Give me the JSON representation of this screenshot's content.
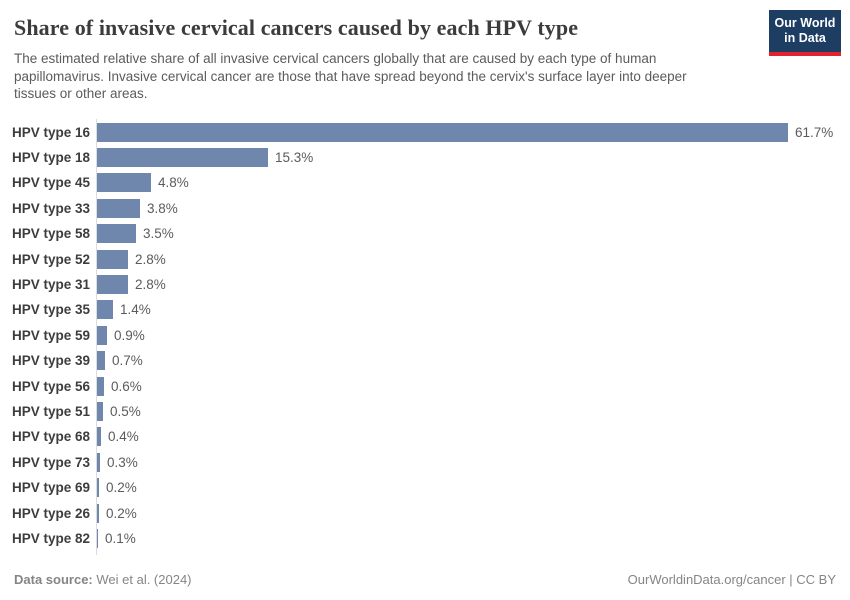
{
  "header": {
    "title": "Share of invasive cervical cancers caused by each HPV type",
    "subtitle": "The estimated relative share of all invasive cervical cancers globally that are caused by each type of human papillomavirus. Invasive cervical cancer are those that have spread beyond the cervix's surface layer into deeper tissues or other areas."
  },
  "logo": {
    "line1": "Our World",
    "line2": "in Data"
  },
  "chart_data": {
    "type": "bar",
    "orientation": "horizontal",
    "title": "Share of invasive cervical cancers caused by each HPV type",
    "categories": [
      "HPV type 16",
      "HPV type 18",
      "HPV type 45",
      "HPV type 33",
      "HPV type 58",
      "HPV type 52",
      "HPV type 31",
      "HPV type 35",
      "HPV type 59",
      "HPV type 39",
      "HPV type 56",
      "HPV type 51",
      "HPV type 68",
      "HPV type 73",
      "HPV type 69",
      "HPV type 26",
      "HPV type 82"
    ],
    "values": [
      61.7,
      15.3,
      4.8,
      3.8,
      3.5,
      2.8,
      2.8,
      1.4,
      0.9,
      0.7,
      0.6,
      0.5,
      0.4,
      0.3,
      0.2,
      0.2,
      0.1
    ],
    "value_labels": [
      "61.7%",
      "15.3%",
      "4.8%",
      "3.8%",
      "3.5%",
      "2.8%",
      "2.8%",
      "1.4%",
      "0.9%",
      "0.7%",
      "0.6%",
      "0.5%",
      "0.4%",
      "0.3%",
      "0.2%",
      "0.2%",
      "0.1%"
    ],
    "xlabel": "",
    "ylabel": "",
    "xlim": [
      0,
      66
    ],
    "grid": false,
    "legend": false,
    "bar_color": "#6f87ad",
    "axis_color": "#dcdcdc"
  },
  "colors": {
    "bar": "#6f87ad",
    "axis_line": "#dcdcdc",
    "logo_background": "#1d3d63",
    "logo_accent": "#e0232c",
    "title_text": "#3c3c3c",
    "subtitle_text": "#5b5b5b",
    "value_text": "#5b5b5b"
  },
  "footer": {
    "data_source_label": "Data source:",
    "data_source_value": "Wei et al. (2024)",
    "attribution": "OurWorldinData.org/cancer | CC BY"
  }
}
